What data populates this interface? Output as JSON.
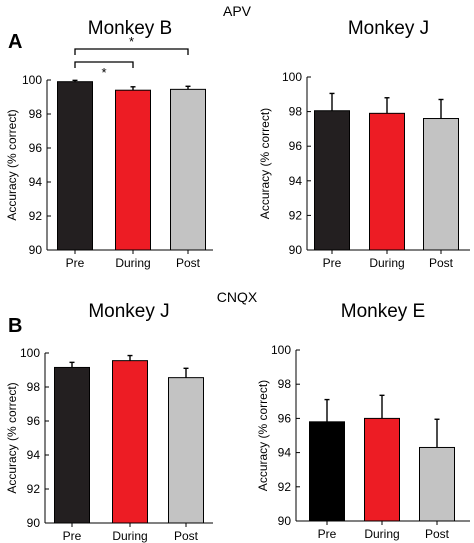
{
  "figure": {
    "section_labels": [
      "APV",
      "CNQX"
    ],
    "panel_letters": [
      "A",
      "B"
    ]
  },
  "colors": {
    "pre": "#231f20",
    "pre_e": "#000000",
    "during": "#ed1c24",
    "post": "#c3c3c3"
  },
  "chart_data": [
    {
      "type": "bar",
      "section": "APV",
      "panel": "A",
      "title": "Monkey B",
      "ylabel": "Accuracy (% correct)",
      "ylim": [
        90,
        100
      ],
      "yticks": [
        "90",
        "92",
        "94",
        "96",
        "98",
        "100"
      ],
      "categories": [
        "Pre",
        "During",
        "Post"
      ],
      "values": [
        99.9,
        99.4,
        99.45
      ],
      "errors": [
        0.08,
        0.2,
        0.18
      ],
      "significance": [
        {
          "from": "Pre",
          "to": "During",
          "label": "*"
        },
        {
          "from": "Pre",
          "to": "Post",
          "label": "*"
        }
      ]
    },
    {
      "type": "bar",
      "section": "APV",
      "title": "Monkey J",
      "ylabel": "Accuracy (% correct)",
      "ylim": [
        90,
        100
      ],
      "yticks": [
        "90",
        "92",
        "94",
        "96",
        "98",
        "100"
      ],
      "categories": [
        "Pre",
        "During",
        "Post"
      ],
      "values": [
        98.05,
        97.9,
        97.6
      ],
      "errors": [
        1.0,
        0.9,
        1.1
      ]
    },
    {
      "type": "bar",
      "section": "CNQX",
      "panel": "B",
      "title": "Monkey J",
      "ylabel": "Accuracy (% correct)",
      "ylim": [
        90,
        100
      ],
      "yticks": [
        "90",
        "92",
        "94",
        "96",
        "98",
        "100"
      ],
      "categories": [
        "Pre",
        "During",
        "Post"
      ],
      "values": [
        99.15,
        99.55,
        98.55
      ],
      "errors": [
        0.3,
        0.3,
        0.55
      ]
    },
    {
      "type": "bar",
      "section": "CNQX",
      "title": "Monkey E",
      "ylabel": "Accuracy (% correct)",
      "ylim": [
        90,
        100
      ],
      "yticks": [
        "90",
        "92",
        "94",
        "96",
        "98",
        "100"
      ],
      "categories": [
        "Pre",
        "During",
        "Post"
      ],
      "values": [
        95.8,
        96.0,
        94.3
      ],
      "errors": [
        1.3,
        1.35,
        1.65
      ]
    }
  ]
}
